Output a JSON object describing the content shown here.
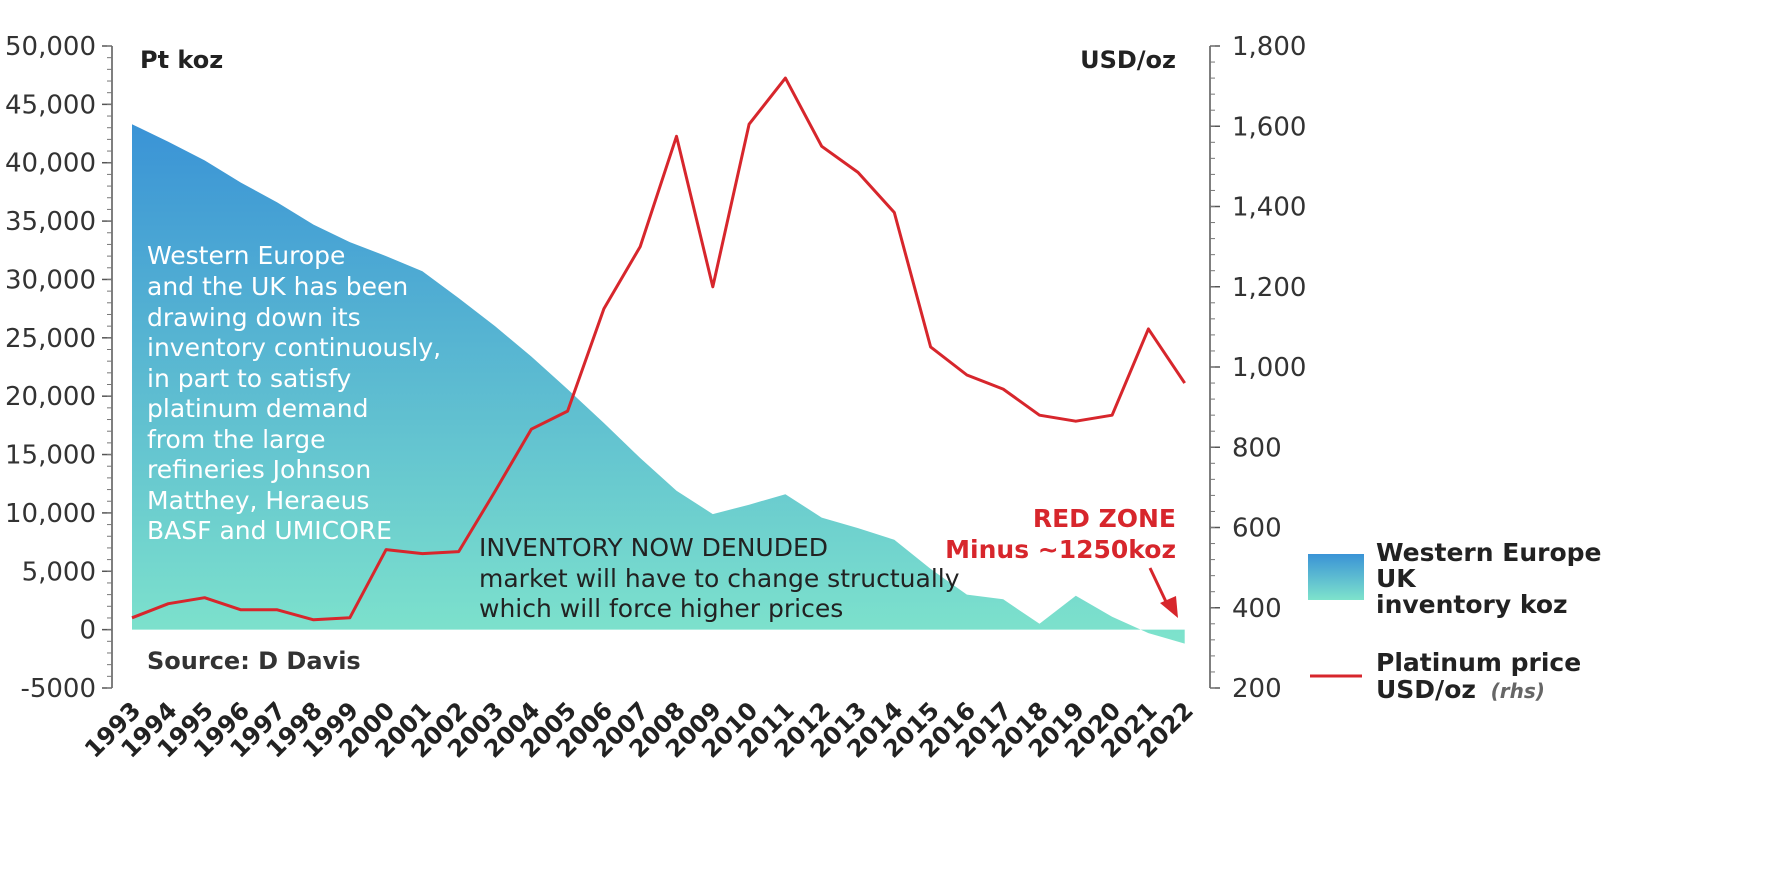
{
  "chart_data": {
    "type": "area+line",
    "left_axis": {
      "unit_label": "Pt koz",
      "ticks": [
        "50,000",
        "45,000",
        "40,000",
        "35,000",
        "30,000",
        "25,000",
        "20,000",
        "15,000",
        "10,000",
        "5,000",
        "0",
        "-5000"
      ],
      "ylim": [
        -5000,
        50000
      ]
    },
    "right_axis": {
      "unit_label": "USD/oz",
      "ticks": [
        "1,800",
        "1,600",
        "1,400",
        "1,200",
        "1,000",
        "800",
        "600",
        "400",
        "200"
      ],
      "ylim": [
        200,
        1800
      ]
    },
    "categories": [
      "1993",
      "1994",
      "1995",
      "1996",
      "1997",
      "1998",
      "1999",
      "2000",
      "2001",
      "2002",
      "2003",
      "2004",
      "2005",
      "2006",
      "2007",
      "2008",
      "2009",
      "2010",
      "2011",
      "2012",
      "2013",
      "2014",
      "2015",
      "2016",
      "2017",
      "2018",
      "2019",
      "2020",
      "2021",
      "2022"
    ],
    "series": [
      {
        "name": "Western Europe UK inventory koz",
        "axis": "left",
        "type": "area",
        "values": [
          43300,
          41800,
          40200,
          38300,
          36600,
          34700,
          33200,
          32000,
          30700,
          28400,
          26000,
          23400,
          20600,
          17700,
          14700,
          11900,
          9900,
          10700,
          11600,
          9600,
          8700,
          7700,
          5200,
          3000,
          2600,
          500,
          2900,
          1100,
          -300,
          -1200
        ]
      },
      {
        "name": "Platinum price USD/oz",
        "axis": "right",
        "type": "line",
        "color": "#d7262c",
        "values": [
          375,
          410,
          425,
          395,
          395,
          370,
          375,
          545,
          535,
          540,
          690,
          845,
          890,
          1145,
          1300,
          1575,
          1200,
          1605,
          1720,
          1550,
          1485,
          1385,
          1050,
          980,
          945,
          880,
          865,
          880,
          1095,
          960
        ]
      }
    ],
    "annotations": {
      "main_note": [
        "Western Europe",
        "and the UK has been",
        "drawing down its",
        "inventory continuously,",
        "in part to satisfy",
        "platinum demand",
        "from the large",
        "refineries Johnson",
        "Matthey, Heraeus",
        "BASF and UMICORE"
      ],
      "inventory_title": "INVENTORY NOW DENUDED",
      "inventory_lines": [
        "market will have to change structually",
        "which will force higher prices"
      ],
      "red_zone_title": "RED ZONE",
      "red_zone_sub": "Minus ~1250koz",
      "source": "Source: D Davis"
    },
    "legend": {
      "area_lines": [
        "Western Europe",
        "UK",
        "inventory koz"
      ],
      "line_lines": [
        "Platinum price"
      ],
      "line_unit": "USD/oz",
      "line_unit_note": "(rhs)",
      "placement": "right"
    },
    "colors": {
      "area_top": "#3a93d6",
      "area_bottom": "#7ee3cc",
      "price_line": "#d7262c",
      "axis": "#555555"
    }
  }
}
